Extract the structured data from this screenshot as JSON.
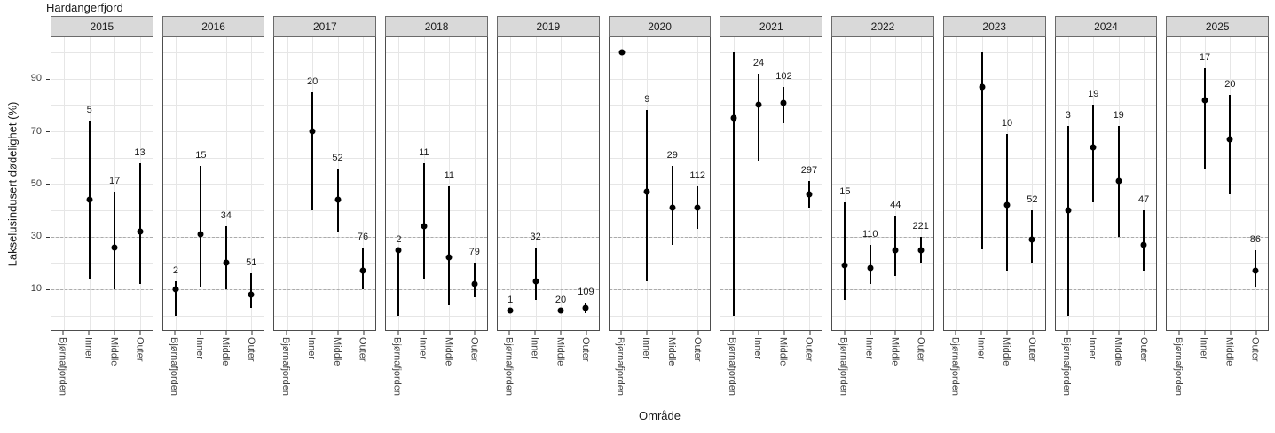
{
  "title": "Hardangerfjord",
  "chart_data": {
    "type": "scatter",
    "subtype": "faceted-pointrange",
    "title": "Hardangerfjord",
    "xlabel": "Område",
    "ylabel": "Lakselusindusert dødelighet (%)",
    "ylim": [
      -5,
      105
    ],
    "yticks": [
      10,
      30,
      50,
      70,
      90
    ],
    "gridline_step": 10,
    "grid": true,
    "reference_lines_dashed": [
      10,
      30
    ],
    "legend_position": "none",
    "categories": [
      "Bjørnafjorden",
      "Inner",
      "Middle",
      "Outer"
    ],
    "facets": [
      {
        "year": "2015",
        "points": [
          {
            "category": "Inner",
            "est": 44,
            "lo": 14,
            "hi": 74,
            "n_label": "5"
          },
          {
            "category": "Middle",
            "est": 26,
            "lo": 10,
            "hi": 47,
            "n_label": "17"
          },
          {
            "category": "Outer",
            "est": 32,
            "lo": 12,
            "hi": 58,
            "n_label": "13"
          }
        ]
      },
      {
        "year": "2016",
        "points": [
          {
            "category": "Bjørnafjorden",
            "est": 10,
            "lo": 0,
            "hi": 13,
            "n_label": "2"
          },
          {
            "category": "Inner",
            "est": 31,
            "lo": 11,
            "hi": 57,
            "n_label": "15"
          },
          {
            "category": "Middle",
            "est": 20,
            "lo": 10,
            "hi": 34,
            "n_label": "34"
          },
          {
            "category": "Outer",
            "est": 8,
            "lo": 3,
            "hi": 16,
            "n_label": "51"
          }
        ]
      },
      {
        "year": "2017",
        "points": [
          {
            "category": "Inner",
            "est": 70,
            "lo": 40,
            "hi": 85,
            "n_label": "20"
          },
          {
            "category": "Middle",
            "est": 44,
            "lo": 32,
            "hi": 56,
            "n_label": "52"
          },
          {
            "category": "Outer",
            "est": 17,
            "lo": 10,
            "hi": 26,
            "n_label": "76"
          }
        ]
      },
      {
        "year": "2018",
        "points": [
          {
            "category": "Bjørnafjorden",
            "est": 25,
            "lo": 0,
            "hi": 25,
            "n_label": "2"
          },
          {
            "category": "Inner",
            "est": 34,
            "lo": 14,
            "hi": 58,
            "n_label": "11"
          },
          {
            "category": "Middle",
            "est": 22,
            "lo": 4,
            "hi": 49,
            "n_label": "11"
          },
          {
            "category": "Outer",
            "est": 12,
            "lo": 7,
            "hi": 20,
            "n_label": "79"
          }
        ]
      },
      {
        "year": "2019",
        "points": [
          {
            "category": "Bjørnafjorden",
            "est": 2,
            "lo": 2,
            "hi": 2,
            "n_label": "1"
          },
          {
            "category": "Inner",
            "est": 13,
            "lo": 6,
            "hi": 26,
            "n_label": "32"
          },
          {
            "category": "Middle",
            "est": 2,
            "lo": 2,
            "hi": 2,
            "n_label": "20"
          },
          {
            "category": "Outer",
            "est": 3,
            "lo": 1,
            "hi": 5,
            "n_label": "109"
          }
        ]
      },
      {
        "year": "2020",
        "points": [
          {
            "category": "Bjørnafjorden",
            "est": 100,
            "lo": 100,
            "hi": 100,
            "n_label": null
          },
          {
            "category": "Inner",
            "est": 47,
            "lo": 13,
            "hi": 78,
            "n_label": "9"
          },
          {
            "category": "Middle",
            "est": 41,
            "lo": 27,
            "hi": 57,
            "n_label": "29"
          },
          {
            "category": "Outer",
            "est": 41,
            "lo": 33,
            "hi": 49,
            "n_label": "112"
          }
        ]
      },
      {
        "year": "2021",
        "points": [
          {
            "category": "Bjørnafjorden",
            "est": 75,
            "lo": 0,
            "hi": 100,
            "n_label": null
          },
          {
            "category": "Inner",
            "est": 80,
            "lo": 59,
            "hi": 92,
            "n_label": "24"
          },
          {
            "category": "Middle",
            "est": 81,
            "lo": 73,
            "hi": 87,
            "n_label": "102"
          },
          {
            "category": "Outer",
            "est": 46,
            "lo": 41,
            "hi": 51,
            "n_label": "297"
          }
        ]
      },
      {
        "year": "2022",
        "points": [
          {
            "category": "Bjørnafjorden",
            "est": 19,
            "lo": 6,
            "hi": 43,
            "n_label": "15"
          },
          {
            "category": "Inner",
            "est": 18,
            "lo": 12,
            "hi": 27,
            "n_label": "110"
          },
          {
            "category": "Middle",
            "est": 25,
            "lo": 15,
            "hi": 38,
            "n_label": "44"
          },
          {
            "category": "Outer",
            "est": 25,
            "lo": 20,
            "hi": 30,
            "n_label": "221"
          }
        ]
      },
      {
        "year": "2023",
        "points": [
          {
            "category": "Inner",
            "est": 87,
            "lo": 25,
            "hi": 100,
            "n_label": null
          },
          {
            "category": "Middle",
            "est": 42,
            "lo": 17,
            "hi": 69,
            "n_label": "10"
          },
          {
            "category": "Outer",
            "est": 29,
            "lo": 20,
            "hi": 40,
            "n_label": "52"
          }
        ]
      },
      {
        "year": "2024",
        "points": [
          {
            "category": "Bjørnafjorden",
            "est": 40,
            "lo": 0,
            "hi": 72,
            "n_label": "3"
          },
          {
            "category": "Inner",
            "est": 64,
            "lo": 43,
            "hi": 80,
            "n_label": "19"
          },
          {
            "category": "Middle",
            "est": 51,
            "lo": 30,
            "hi": 72,
            "n_label": "19"
          },
          {
            "category": "Outer",
            "est": 27,
            "lo": 17,
            "hi": 40,
            "n_label": "47"
          }
        ]
      },
      {
        "year": "2025",
        "points": [
          {
            "category": "Inner",
            "est": 82,
            "lo": 56,
            "hi": 94,
            "n_label": "17"
          },
          {
            "category": "Middle",
            "est": 67,
            "lo": 46,
            "hi": 84,
            "n_label": "20"
          },
          {
            "category": "Outer",
            "est": 17,
            "lo": 11,
            "hi": 25,
            "n_label": "86"
          }
        ]
      }
    ]
  },
  "colors": {
    "point": "#000000",
    "error_bar": "#000000",
    "strip_background": "#d9d9d9",
    "strip_border": "#6b6b6b",
    "panel_border": "#4d4d4d",
    "gridline": "#e6e6e6",
    "dashed_reference": "#ababab",
    "axis_text": "#404040"
  }
}
